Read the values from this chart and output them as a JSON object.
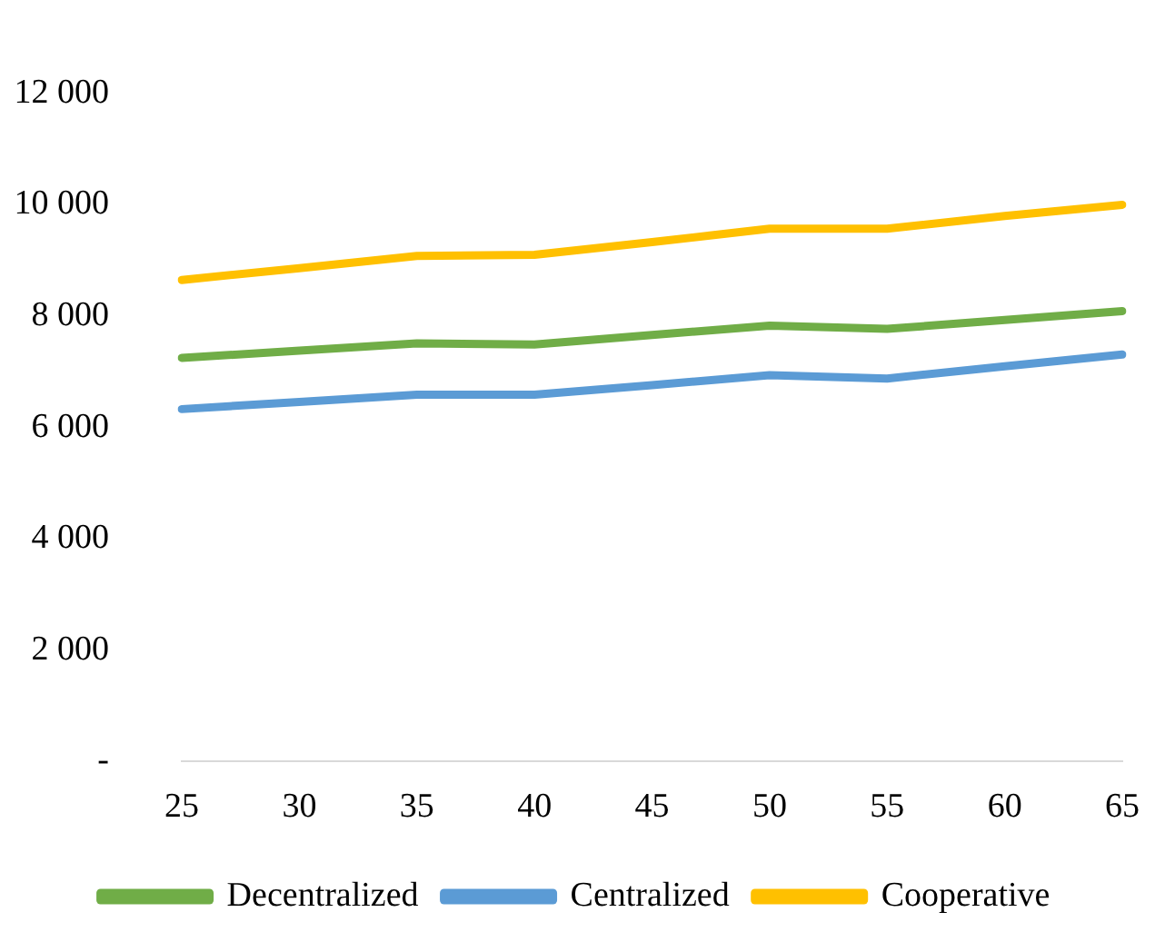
{
  "chart_data": {
    "type": "line",
    "categories": [
      "25",
      "30",
      "35",
      "40",
      "45",
      "50",
      "55",
      "60",
      "65"
    ],
    "series": [
      {
        "name": "Decentralized",
        "color": "#70ad47",
        "values": [
          7250,
          7380,
          7510,
          7490,
          7660,
          7830,
          7770,
          7930,
          8090
        ]
      },
      {
        "name": "Centralized",
        "color": "#5b9bd5",
        "values": [
          6330,
          6460,
          6590,
          6590,
          6760,
          6940,
          6880,
          7100,
          7310
        ]
      },
      {
        "name": "Cooperative",
        "color": "#ffc000",
        "values": [
          8650,
          8860,
          9080,
          9100,
          9330,
          9570,
          9570,
          9800,
          10000
        ]
      }
    ],
    "ylim": [
      0,
      12000
    ],
    "yticks": [
      {
        "value": 0,
        "label": "-"
      },
      {
        "value": 2000,
        "label": "2 000"
      },
      {
        "value": 4000,
        "label": "4 000"
      },
      {
        "value": 6000,
        "label": "6 000"
      },
      {
        "value": 8000,
        "label": "8 000"
      },
      {
        "value": 10000,
        "label": "10 000"
      },
      {
        "value": 12000,
        "label": "12 000"
      }
    ],
    "grid": false,
    "legend": "bottom",
    "marker": "none",
    "line_style": "solid"
  }
}
